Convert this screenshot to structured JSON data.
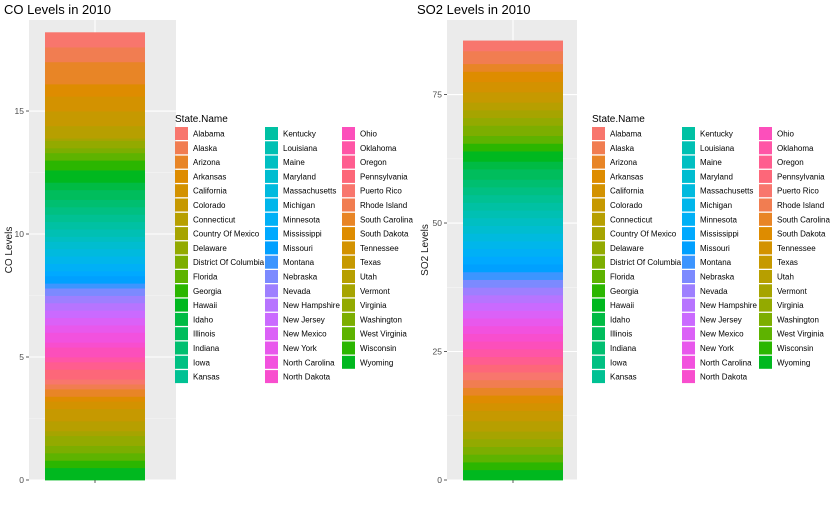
{
  "states": [
    "Alabama",
    "Alaska",
    "Arizona",
    "Arkansas",
    "California",
    "Colorado",
    "Connecticut",
    "Country Of Mexico",
    "Delaware",
    "District Of Columbia",
    "Florida",
    "Georgia",
    "Hawaii",
    "Idaho",
    "Illinois",
    "Indiana",
    "Iowa",
    "Kansas",
    "Kentucky",
    "Louisiana",
    "Maine",
    "Maryland",
    "Massachusetts",
    "Michigan",
    "Minnesota",
    "Mississippi",
    "Missouri",
    "Montana",
    "Nebraska",
    "Nevada",
    "New Hampshire",
    "New Jersey",
    "New Mexico",
    "New York",
    "North Carolina",
    "North Dakota",
    "Ohio",
    "Oklahoma",
    "Oregon",
    "Pennsylvania",
    "Puerto Rico",
    "Rhode Island",
    "South Carolina",
    "South Dakota",
    "Tennessee",
    "Texas",
    "Utah",
    "Vermont",
    "Virginia",
    "Washington",
    "West Virginia",
    "Wisconsin",
    "Wyoming"
  ],
  "colors": [
    "#F8766D",
    "#F17D51",
    "#E88526",
    "#DE8C00",
    "#D39200",
    "#C69900",
    "#B79F00",
    "#A6A400",
    "#93AA00",
    "#7CAE00",
    "#5EB300",
    "#2BB600",
    "#00B81F",
    "#00BB44",
    "#00BD5C",
    "#00BF70",
    "#00C082",
    "#00C193",
    "#00C1A3",
    "#00C0B3",
    "#00BFC2",
    "#00BDD0",
    "#00BADE",
    "#00B6EB",
    "#00B0F6",
    "#00A9FF",
    "#00A0FF",
    "#3C95FF",
    "#7C8AFF",
    "#9E7FFF",
    "#B774FF",
    "#CA6AFF",
    "#DB61F7",
    "#E858EC",
    "#F251DE",
    "#F84ECE",
    "#FC4FBB",
    "#FF55A6",
    "#FF5D8F",
    "#FD6779",
    "#F8766D",
    "#F17D51",
    "#E88526",
    "#DE8C00",
    "#D39200",
    "#C69900",
    "#B79F00",
    "#A6A400",
    "#93AA00",
    "#7CAE00",
    "#5EB300",
    "#2BB600",
    "#00B81F"
  ],
  "legend_title": "State.Name",
  "chart_data": [
    {
      "type": "bar",
      "stacked": true,
      "title": "CO Levels in 2010",
      "xlabel": "",
      "ylabel": "CO Levels",
      "ylim": [
        0,
        18.7
      ],
      "yticks": [
        0,
        5,
        10,
        15
      ],
      "ytick_labels": [
        "0",
        "5",
        "10",
        "15"
      ],
      "total": 17.8,
      "values": [
        0.6,
        0.6,
        0.9,
        0.5,
        0.6,
        0.6,
        0.5,
        0.1,
        0.3,
        0.2,
        0.3,
        0.4,
        0.5,
        0.3,
        0.4,
        0.3,
        0.3,
        0.3,
        0.3,
        0.3,
        0.2,
        0.3,
        0.3,
        0.3,
        0.3,
        0.2,
        0.3,
        0.2,
        0.3,
        0.3,
        0.3,
        0.3,
        0.3,
        0.3,
        0.4,
        0.2,
        0.4,
        0.2,
        0.3,
        0.4,
        0.2,
        0.2,
        0.3,
        0.2,
        0.3,
        0.5,
        0.4,
        0.2,
        0.4,
        0.3,
        0.3,
        0.3,
        0.5
      ]
    },
    {
      "type": "bar",
      "stacked": true,
      "title": "SO2 Levels in 2010",
      "xlabel": "",
      "ylabel": "SO2 Levels",
      "ylim": [
        0,
        89.5
      ],
      "yticks": [
        0,
        25,
        50,
        75
      ],
      "ytick_labels": [
        "0",
        "25",
        "50",
        "75"
      ],
      "total": 85.5,
      "values": [
        2,
        2.5,
        1.5,
        2,
        2,
        2,
        1.5,
        1.5,
        1.5,
        2,
        1.5,
        1.5,
        2,
        1.5,
        2,
        1.5,
        1.5,
        1.5,
        1.5,
        1.5,
        1.5,
        1.5,
        1.5,
        1.5,
        1.5,
        1.5,
        1.5,
        1.5,
        1.5,
        1.5,
        1.5,
        1.5,
        1.5,
        1.5,
        1.5,
        1.5,
        1.5,
        1.5,
        1.5,
        1.5,
        1.5,
        1.5,
        1.5,
        1.5,
        1.5,
        2,
        2,
        1.5,
        1.5,
        1.5,
        1.5,
        1.5,
        2
      ]
    }
  ]
}
